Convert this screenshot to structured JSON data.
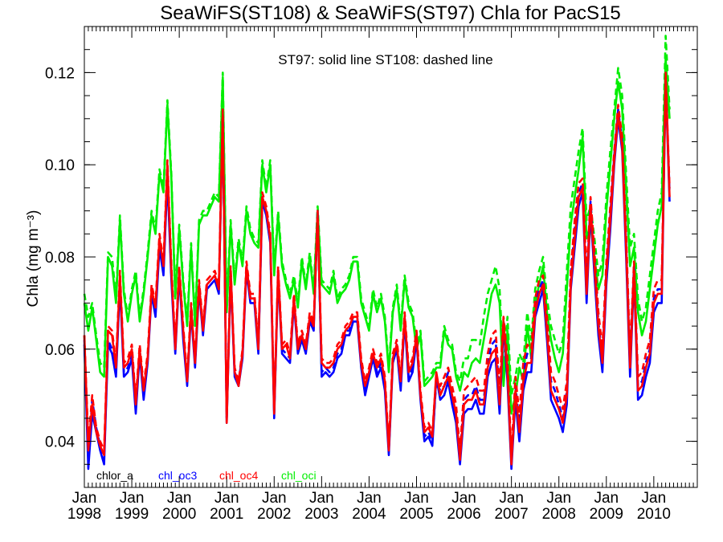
{
  "chart_data": {
    "type": "line",
    "title": "SeaWiFS(ST108) & SeaWiFS(ST97)  Chla for PacS15",
    "subtitle": "ST97: solid line   ST108: dashed line",
    "xlabel": "",
    "ylabel": "Chla (mg m⁻³)",
    "xlim": [
      "1998-01",
      "2010-12"
    ],
    "ylim": [
      0.03,
      0.13
    ],
    "yticks": [
      "0.04",
      "0.06",
      "0.08",
      "0.10",
      "0.12"
    ],
    "xticks": [
      {
        "month": "Jan",
        "year": "1998"
      },
      {
        "month": "Jan",
        "year": "1999"
      },
      {
        "month": "Jan",
        "year": "2000"
      },
      {
        "month": "Jan",
        "year": "2001"
      },
      {
        "month": "Jan",
        "year": "2002"
      },
      {
        "month": "Jan",
        "year": "2003"
      },
      {
        "month": "Jan",
        "year": "2004"
      },
      {
        "month": "Jan",
        "year": "2005"
      },
      {
        "month": "Jan",
        "year": "2006"
      },
      {
        "month": "Jan",
        "year": "2007"
      },
      {
        "month": "Jan",
        "year": "2008"
      },
      {
        "month": "Jan",
        "year": "2009"
      },
      {
        "month": "Jan",
        "year": "2010"
      }
    ],
    "grid": false,
    "legend": {
      "placement": "bottom-left",
      "entries": [
        {
          "label": "chlor_a",
          "color": "#000000"
        },
        {
          "label": "chl_oc3",
          "color": "#0000ff"
        },
        {
          "label": "chl_oc4",
          "color": "#ff0000"
        },
        {
          "label": "chl_oci",
          "color": "#00ee00"
        }
      ]
    },
    "series": [
      {
        "name": "chl_oci",
        "color": "#00ee00",
        "style": "solid",
        "start": "1998-01",
        "values": [
          0.07,
          0.064,
          0.069,
          0.062,
          0.055,
          0.054,
          0.08,
          0.078,
          0.07,
          0.088,
          0.072,
          0.066,
          0.072,
          0.076,
          0.066,
          0.072,
          0.08,
          0.089,
          0.085,
          0.098,
          0.094,
          0.113,
          0.097,
          0.071,
          0.086,
          0.074,
          0.065,
          0.082,
          0.065,
          0.087,
          0.089,
          0.089,
          0.091,
          0.093,
          0.092,
          0.119,
          0.068,
          0.087,
          0.074,
          0.083,
          0.078,
          0.09,
          0.085,
          0.083,
          0.082,
          0.1,
          0.094,
          0.1,
          0.076,
          0.089,
          0.078,
          0.074,
          0.071,
          0.075,
          0.069,
          0.079,
          0.073,
          0.08,
          0.072,
          0.09,
          0.074,
          0.073,
          0.072,
          0.076,
          0.07,
          0.072,
          0.073,
          0.075,
          0.079,
          0.079,
          0.07,
          0.067,
          0.064,
          0.072,
          0.068,
          0.071,
          0.066,
          0.055,
          0.068,
          0.073,
          0.064,
          0.075,
          0.069,
          0.067,
          0.06,
          0.063,
          0.052,
          0.053,
          0.054,
          0.056,
          0.056,
          0.064,
          0.061,
          0.06,
          0.054,
          0.051,
          0.055,
          0.054,
          0.057,
          0.058,
          0.057,
          0.062,
          0.067,
          0.072,
          0.074,
          0.07,
          0.052,
          0.064,
          0.046,
          0.05,
          0.056,
          0.053,
          0.065,
          0.058,
          0.07,
          0.074,
          0.078,
          0.068,
          0.062,
          0.058,
          0.055,
          0.059,
          0.073,
          0.087,
          0.093,
          0.099,
          0.106,
          0.084,
          0.087,
          0.08,
          0.073,
          0.076,
          0.09,
          0.1,
          0.11,
          0.118,
          0.112,
          0.095,
          0.078,
          0.082,
          0.068,
          0.063,
          0.066,
          0.073,
          0.08,
          0.087,
          0.091,
          0.123,
          0.11
        ]
      },
      {
        "name": "chl_oci",
        "color": "#00ee00",
        "style": "dashed",
        "start": "1998-01",
        "values": [
          0.072,
          0.067,
          0.07,
          0.063,
          0.057,
          0.056,
          0.081,
          0.08,
          0.071,
          0.089,
          0.073,
          0.067,
          0.073,
          0.077,
          0.067,
          0.073,
          0.081,
          0.09,
          0.086,
          0.099,
          0.095,
          0.114,
          0.098,
          0.072,
          0.087,
          0.075,
          0.066,
          0.083,
          0.066,
          0.088,
          0.09,
          0.09,
          0.092,
          0.094,
          0.093,
          0.12,
          0.069,
          0.088,
          0.075,
          0.084,
          0.079,
          0.091,
          0.086,
          0.084,
          0.083,
          0.101,
          0.095,
          0.101,
          0.077,
          0.09,
          0.079,
          0.075,
          0.072,
          0.076,
          0.07,
          0.08,
          0.074,
          0.081,
          0.073,
          0.091,
          0.075,
          0.074,
          0.073,
          0.077,
          0.071,
          0.073,
          0.074,
          0.076,
          0.08,
          0.08,
          0.071,
          0.068,
          0.065,
          0.073,
          0.069,
          0.072,
          0.067,
          0.056,
          0.069,
          0.074,
          0.065,
          0.076,
          0.07,
          0.068,
          0.061,
          0.064,
          0.053,
          0.054,
          0.055,
          0.057,
          0.057,
          0.065,
          0.062,
          0.061,
          0.055,
          0.053,
          0.058,
          0.058,
          0.062,
          0.062,
          0.061,
          0.067,
          0.072,
          0.075,
          0.078,
          0.073,
          0.056,
          0.067,
          0.05,
          0.054,
          0.059,
          0.057,
          0.068,
          0.062,
          0.073,
          0.077,
          0.08,
          0.071,
          0.065,
          0.062,
          0.059,
          0.062,
          0.077,
          0.091,
          0.097,
          0.103,
          0.108,
          0.088,
          0.091,
          0.084,
          0.076,
          0.079,
          0.093,
          0.103,
          0.112,
          0.121,
          0.115,
          0.098,
          0.082,
          0.085,
          0.071,
          0.066,
          0.069,
          0.076,
          0.083,
          0.09,
          0.094,
          0.128,
          0.112
        ]
      },
      {
        "name": "chl_oc3",
        "color": "#0000ff",
        "style": "solid",
        "start": "1998-01",
        "values": [
          0.061,
          0.034,
          0.046,
          0.042,
          0.038,
          0.035,
          0.061,
          0.059,
          0.054,
          0.074,
          0.054,
          0.055,
          0.058,
          0.046,
          0.059,
          0.049,
          0.057,
          0.072,
          0.067,
          0.082,
          0.076,
          0.097,
          0.075,
          0.059,
          0.076,
          0.062,
          0.052,
          0.068,
          0.056,
          0.073,
          0.063,
          0.073,
          0.074,
          0.075,
          0.072,
          0.11,
          0.044,
          0.076,
          0.054,
          0.052,
          0.058,
          0.077,
          0.07,
          0.07,
          0.059,
          0.092,
          0.089,
          0.083,
          0.045,
          0.076,
          0.059,
          0.058,
          0.057,
          0.07,
          0.059,
          0.062,
          0.059,
          0.066,
          0.064,
          0.09,
          0.054,
          0.055,
          0.054,
          0.055,
          0.058,
          0.059,
          0.063,
          0.063,
          0.066,
          0.066,
          0.056,
          0.05,
          0.054,
          0.058,
          0.054,
          0.056,
          0.051,
          0.037,
          0.057,
          0.06,
          0.051,
          0.066,
          0.053,
          0.055,
          0.062,
          0.049,
          0.04,
          0.041,
          0.039,
          0.054,
          0.049,
          0.05,
          0.053,
          0.048,
          0.044,
          0.035,
          0.046,
          0.047,
          0.047,
          0.049,
          0.046,
          0.046,
          0.054,
          0.057,
          0.058,
          0.046,
          0.065,
          0.053,
          0.034,
          0.049,
          0.04,
          0.051,
          0.055,
          0.055,
          0.067,
          0.07,
          0.073,
          0.062,
          0.049,
          0.047,
          0.045,
          0.042,
          0.048,
          0.073,
          0.082,
          0.091,
          0.094,
          0.07,
          0.09,
          0.076,
          0.063,
          0.055,
          0.074,
          0.086,
          0.1,
          0.11,
          0.103,
          0.08,
          0.054,
          0.076,
          0.049,
          0.05,
          0.054,
          0.057,
          0.068,
          0.07,
          0.07,
          0.118,
          0.092
        ]
      },
      {
        "name": "chl_oc3",
        "color": "#0000ff",
        "style": "dashed",
        "start": "1998-01",
        "values": [
          0.062,
          0.037,
          0.049,
          0.043,
          0.039,
          0.036,
          0.062,
          0.06,
          0.055,
          0.075,
          0.055,
          0.056,
          0.059,
          0.047,
          0.06,
          0.05,
          0.058,
          0.073,
          0.068,
          0.083,
          0.077,
          0.098,
          0.076,
          0.06,
          0.077,
          0.063,
          0.053,
          0.069,
          0.057,
          0.074,
          0.064,
          0.074,
          0.075,
          0.076,
          0.073,
          0.111,
          0.045,
          0.077,
          0.055,
          0.053,
          0.059,
          0.078,
          0.071,
          0.071,
          0.06,
          0.093,
          0.09,
          0.084,
          0.046,
          0.077,
          0.06,
          0.059,
          0.058,
          0.071,
          0.06,
          0.063,
          0.06,
          0.067,
          0.065,
          0.089,
          0.055,
          0.056,
          0.055,
          0.056,
          0.059,
          0.06,
          0.064,
          0.064,
          0.067,
          0.067,
          0.057,
          0.051,
          0.055,
          0.059,
          0.055,
          0.057,
          0.052,
          0.038,
          0.058,
          0.061,
          0.052,
          0.067,
          0.054,
          0.056,
          0.063,
          0.05,
          0.041,
          0.042,
          0.04,
          0.053,
          0.051,
          0.052,
          0.055,
          0.05,
          0.046,
          0.037,
          0.049,
          0.05,
          0.05,
          0.052,
          0.049,
          0.049,
          0.057,
          0.061,
          0.062,
          0.05,
          0.066,
          0.056,
          0.036,
          0.052,
          0.044,
          0.055,
          0.059,
          0.058,
          0.07,
          0.073,
          0.075,
          0.065,
          0.053,
          0.051,
          0.048,
          0.045,
          0.051,
          0.076,
          0.086,
          0.094,
          0.096,
          0.074,
          0.092,
          0.079,
          0.066,
          0.058,
          0.077,
          0.089,
          0.102,
          0.112,
          0.105,
          0.083,
          0.057,
          0.078,
          0.052,
          0.053,
          0.057,
          0.06,
          0.071,
          0.073,
          0.073,
          0.119,
          0.094
        ]
      },
      {
        "name": "chl_oc4",
        "color": "#ff0000",
        "style": "solid",
        "start": "1998-01",
        "values": [
          0.063,
          0.038,
          0.048,
          0.042,
          0.039,
          0.037,
          0.064,
          0.063,
          0.056,
          0.076,
          0.056,
          0.057,
          0.06,
          0.048,
          0.06,
          0.051,
          0.058,
          0.073,
          0.069,
          0.084,
          0.078,
          0.1,
          0.077,
          0.06,
          0.077,
          0.064,
          0.053,
          0.069,
          0.057,
          0.074,
          0.064,
          0.074,
          0.075,
          0.076,
          0.073,
          0.111,
          0.044,
          0.077,
          0.055,
          0.052,
          0.059,
          0.078,
          0.071,
          0.071,
          0.06,
          0.093,
          0.09,
          0.084,
          0.046,
          0.077,
          0.06,
          0.061,
          0.058,
          0.071,
          0.06,
          0.063,
          0.06,
          0.067,
          0.065,
          0.089,
          0.057,
          0.056,
          0.056,
          0.057,
          0.06,
          0.061,
          0.064,
          0.065,
          0.067,
          0.067,
          0.057,
          0.052,
          0.055,
          0.059,
          0.056,
          0.058,
          0.053,
          0.038,
          0.058,
          0.061,
          0.053,
          0.067,
          0.055,
          0.057,
          0.063,
          0.05,
          0.042,
          0.043,
          0.041,
          0.055,
          0.05,
          0.052,
          0.054,
          0.05,
          0.046,
          0.036,
          0.048,
          0.049,
          0.049,
          0.051,
          0.048,
          0.048,
          0.056,
          0.059,
          0.06,
          0.048,
          0.066,
          0.055,
          0.035,
          0.051,
          0.042,
          0.053,
          0.057,
          0.057,
          0.068,
          0.072,
          0.074,
          0.064,
          0.051,
          0.049,
          0.047,
          0.044,
          0.05,
          0.074,
          0.084,
          0.093,
          0.095,
          0.072,
          0.091,
          0.078,
          0.065,
          0.057,
          0.076,
          0.088,
          0.101,
          0.111,
          0.104,
          0.082,
          0.056,
          0.077,
          0.051,
          0.052,
          0.056,
          0.059,
          0.07,
          0.072,
          0.072,
          0.119,
          0.093
        ]
      },
      {
        "name": "chl_oc4",
        "color": "#ff0000",
        "style": "dashed",
        "start": "1998-01",
        "values": [
          0.063,
          0.04,
          0.05,
          0.043,
          0.04,
          0.038,
          0.065,
          0.064,
          0.057,
          0.077,
          0.057,
          0.058,
          0.061,
          0.049,
          0.061,
          0.052,
          0.059,
          0.074,
          0.07,
          0.085,
          0.079,
          0.101,
          0.078,
          0.061,
          0.078,
          0.065,
          0.054,
          0.07,
          0.058,
          0.075,
          0.065,
          0.075,
          0.076,
          0.077,
          0.074,
          0.112,
          0.045,
          0.078,
          0.056,
          0.053,
          0.06,
          0.079,
          0.072,
          0.072,
          0.061,
          0.094,
          0.091,
          0.085,
          0.047,
          0.078,
          0.061,
          0.062,
          0.059,
          0.072,
          0.061,
          0.064,
          0.061,
          0.068,
          0.066,
          0.09,
          0.058,
          0.057,
          0.057,
          0.058,
          0.061,
          0.062,
          0.065,
          0.066,
          0.068,
          0.068,
          0.058,
          0.053,
          0.056,
          0.06,
          0.057,
          0.059,
          0.054,
          0.039,
          0.059,
          0.062,
          0.054,
          0.068,
          0.056,
          0.058,
          0.064,
          0.051,
          0.043,
          0.044,
          0.042,
          0.054,
          0.052,
          0.054,
          0.056,
          0.052,
          0.048,
          0.038,
          0.051,
          0.052,
          0.053,
          0.054,
          0.051,
          0.051,
          0.059,
          0.063,
          0.064,
          0.052,
          0.067,
          0.058,
          0.037,
          0.054,
          0.046,
          0.057,
          0.061,
          0.06,
          0.071,
          0.075,
          0.076,
          0.067,
          0.055,
          0.053,
          0.05,
          0.047,
          0.053,
          0.077,
          0.088,
          0.096,
          0.097,
          0.076,
          0.093,
          0.081,
          0.068,
          0.06,
          0.079,
          0.091,
          0.103,
          0.113,
          0.106,
          0.085,
          0.059,
          0.079,
          0.054,
          0.055,
          0.059,
          0.062,
          0.073,
          0.075,
          0.075,
          0.12,
          0.095
        ]
      }
    ]
  }
}
